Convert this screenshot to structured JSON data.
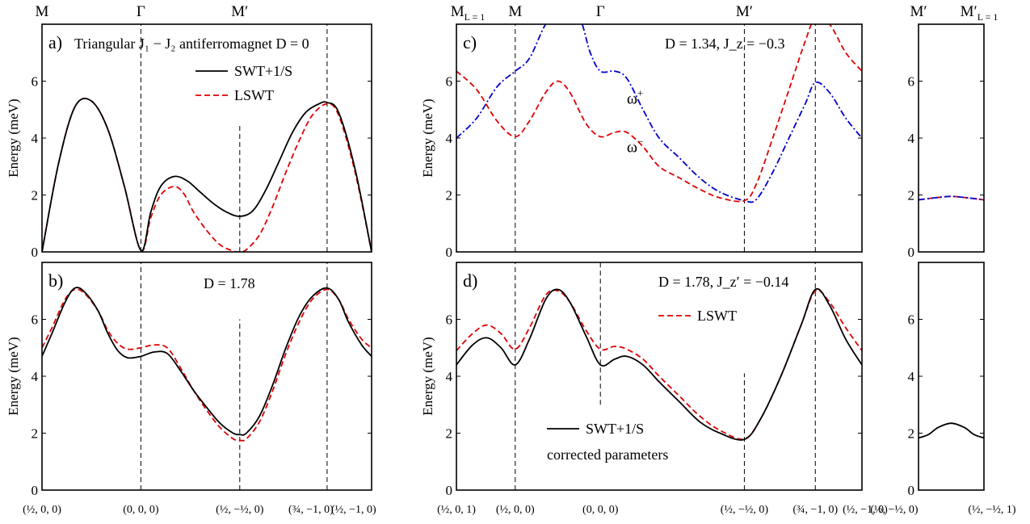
{
  "chart_data": [
    {
      "id": "a",
      "type": "line",
      "panel_label": "a)",
      "title": "Triangular J₁ − J₂ antiferromagnet D = 0",
      "ylabel": "Energy (meV)",
      "ylim": [
        0,
        8
      ],
      "yticks": [
        0,
        2,
        4,
        6
      ],
      "xlim": [
        0,
        1
      ],
      "top_labels": [
        {
          "x": 0.0,
          "text": "M"
        },
        {
          "x": 0.3,
          "text": "Γ"
        },
        {
          "x": 0.6,
          "text": "M′"
        }
      ],
      "vlines": [
        {
          "x": 0.3,
          "ymin": 0,
          "ymax": 8
        },
        {
          "x": 0.6,
          "ymin": 0,
          "ymax": 4.5
        },
        {
          "x": 0.865,
          "ymin": 0,
          "ymax": 8
        }
      ],
      "legend": [
        {
          "text": "SWT+1/S",
          "color": "#000000",
          "dash": "solid"
        },
        {
          "text": "LSWT",
          "color": "#e00000",
          "dash": "dashed"
        }
      ],
      "series": [
        {
          "name": "LSWT",
          "color": "#e00000",
          "dash": "dashed",
          "x": [
            0,
            0.05,
            0.1,
            0.15,
            0.2,
            0.25,
            0.3,
            0.33,
            0.36,
            0.4,
            0.43,
            0.46,
            0.5,
            0.54,
            0.58,
            0.6,
            0.62,
            0.66,
            0.7,
            0.74,
            0.78,
            0.82,
            0.865,
            0.9,
            0.95,
            1.0
          ],
          "y": [
            0,
            3.1,
            5.1,
            5.3,
            4.3,
            2.3,
            0.05,
            1.2,
            2.0,
            2.3,
            2.05,
            1.4,
            0.75,
            0.25,
            0.03,
            0,
            0.08,
            0.6,
            1.6,
            2.8,
            3.9,
            4.8,
            5.2,
            4.8,
            2.8,
            0
          ]
        },
        {
          "name": "SWT+1/S",
          "color": "#000000",
          "dash": "solid",
          "x": [
            0,
            0.05,
            0.1,
            0.15,
            0.2,
            0.25,
            0.3,
            0.33,
            0.36,
            0.4,
            0.44,
            0.48,
            0.52,
            0.56,
            0.6,
            0.64,
            0.68,
            0.72,
            0.76,
            0.8,
            0.84,
            0.865,
            0.9,
            0.95,
            1.0
          ],
          "y": [
            0,
            3.1,
            5.1,
            5.3,
            4.3,
            2.3,
            0.05,
            1.4,
            2.3,
            2.65,
            2.5,
            2.1,
            1.7,
            1.4,
            1.25,
            1.45,
            2.2,
            3.2,
            4.2,
            4.9,
            5.2,
            5.25,
            4.9,
            2.9,
            0
          ]
        }
      ]
    },
    {
      "id": "b",
      "type": "line",
      "panel_label": "b)",
      "title": "D = 1.78",
      "ylabel": "Energy (meV)",
      "ylim": [
        0,
        8
      ],
      "yticks": [
        0,
        2,
        4,
        6
      ],
      "xlim": [
        0,
        1
      ],
      "vlines": [
        {
          "x": 0.3,
          "ymin": 0,
          "ymax": 8
        },
        {
          "x": 0.6,
          "ymin": 0,
          "ymax": 6.0
        },
        {
          "x": 0.865,
          "ymin": 0,
          "ymax": 8
        }
      ],
      "xtick_labels": [
        {
          "x": 0.0,
          "text": "(½, 0, 0)"
        },
        {
          "x": 0.3,
          "text": "(0, 0, 0)"
        },
        {
          "x": 0.6,
          "text": "(½, −½, 0)"
        },
        {
          "x": 0.865,
          "text": "(¾, −1, 0)"
        },
        {
          "x": 1.0,
          "text": "(½, −1, 0)"
        }
      ],
      "series": [
        {
          "name": "LSWT",
          "color": "#e00000",
          "dash": "dashed",
          "x": [
            0,
            0.03,
            0.07,
            0.1,
            0.13,
            0.17,
            0.2,
            0.23,
            0.26,
            0.3,
            0.34,
            0.38,
            0.42,
            0.46,
            0.5,
            0.54,
            0.58,
            0.6,
            0.62,
            0.66,
            0.7,
            0.74,
            0.78,
            0.82,
            0.865,
            0.9,
            0.93,
            0.97,
            1.0
          ],
          "y": [
            5.0,
            5.7,
            6.7,
            7.05,
            6.9,
            6.3,
            5.6,
            5.15,
            4.95,
            5.0,
            5.1,
            5.0,
            4.3,
            3.5,
            2.8,
            2.2,
            1.8,
            1.75,
            1.8,
            2.4,
            3.5,
            4.8,
            5.9,
            6.7,
            7.05,
            6.7,
            6.0,
            5.3,
            5.0
          ]
        },
        {
          "name": "SWT+1/S",
          "color": "#000000",
          "dash": "solid",
          "x": [
            0,
            0.03,
            0.07,
            0.1,
            0.13,
            0.17,
            0.2,
            0.23,
            0.26,
            0.3,
            0.34,
            0.38,
            0.42,
            0.46,
            0.5,
            0.54,
            0.58,
            0.6,
            0.62,
            0.66,
            0.7,
            0.74,
            0.78,
            0.82,
            0.865,
            0.9,
            0.93,
            0.97,
            1.0
          ],
          "y": [
            4.7,
            5.5,
            6.6,
            7.1,
            6.95,
            6.3,
            5.5,
            4.9,
            4.65,
            4.7,
            4.85,
            4.8,
            4.2,
            3.5,
            2.9,
            2.35,
            2.0,
            1.95,
            2.0,
            2.6,
            3.7,
            5.0,
            6.1,
            6.8,
            7.1,
            6.7,
            5.9,
            5.1,
            4.7
          ]
        }
      ]
    },
    {
      "id": "c",
      "type": "line",
      "panel_label": "c)",
      "title": "D = 1.34, J_z = −0.3",
      "ylabel": "Energy (meV)",
      "ylim": [
        0,
        8
      ],
      "yticks": [
        0,
        2,
        4,
        6
      ],
      "xlim": [
        0,
        1
      ],
      "top_labels": [
        {
          "x": 0.0,
          "text": "M",
          "sub": "L = 1"
        },
        {
          "x": 0.145,
          "text": "M"
        },
        {
          "x": 0.355,
          "text": "Γ"
        },
        {
          "x": 0.71,
          "text": "M′"
        }
      ],
      "vlines": [
        {
          "x": 0.145,
          "ymin": 0,
          "ymax": 8
        },
        {
          "x": 0.71,
          "ymin": 0,
          "ymax": 8
        },
        {
          "x": 0.885,
          "ymin": 0,
          "ymax": 8
        }
      ],
      "annotations": [
        {
          "text": "ω",
          "sup": "+",
          "x": 0.42,
          "y": 5.2,
          "color": "#0000cc"
        },
        {
          "text": "ω",
          "sup": "−",
          "x": 0.42,
          "y": 3.5,
          "color": "#e00000"
        }
      ],
      "series": [
        {
          "name": "ω⁺",
          "color": "#0000cc",
          "dash": "dashdot",
          "x": [
            0,
            0.05,
            0.1,
            0.145,
            0.18,
            0.22,
            0.25,
            0.3,
            0.33,
            0.355,
            0.39,
            0.42,
            0.46,
            0.5,
            0.55,
            0.6,
            0.65,
            0.71,
            0.74,
            0.78,
            0.82,
            0.86,
            0.885,
            0.92,
            0.96,
            1.0
          ],
          "y": [
            4.0,
            4.7,
            5.8,
            6.35,
            6.8,
            8.0,
            8.3,
            8.3,
            7.0,
            6.35,
            6.35,
            6.1,
            5.0,
            4.0,
            3.3,
            2.6,
            2.1,
            1.8,
            1.85,
            2.8,
            4.0,
            5.2,
            5.95,
            5.6,
            4.7,
            4.0
          ]
        },
        {
          "name": "ω⁻",
          "color": "#e00000",
          "dash": "dashed",
          "x": [
            0,
            0.05,
            0.1,
            0.145,
            0.18,
            0.22,
            0.25,
            0.28,
            0.32,
            0.355,
            0.39,
            0.42,
            0.46,
            0.5,
            0.55,
            0.6,
            0.65,
            0.71,
            0.74,
            0.78,
            0.82,
            0.86,
            0.885,
            0.92,
            0.96,
            1.0
          ],
          "y": [
            6.35,
            5.7,
            4.6,
            4.05,
            4.6,
            5.6,
            6.0,
            5.6,
            4.5,
            4.05,
            4.2,
            4.2,
            3.7,
            3.0,
            2.6,
            2.2,
            1.9,
            1.8,
            2.4,
            4.0,
            5.7,
            7.4,
            8.2,
            8.0,
            7.0,
            6.35
          ]
        }
      ]
    },
    {
      "id": "c-side",
      "type": "line",
      "ylim": [
        0,
        8
      ],
      "yticks": [
        0,
        2,
        4,
        6
      ],
      "xlim": [
        0,
        1
      ],
      "top_labels": [
        {
          "x": 0.0,
          "text": "M′"
        },
        {
          "x": 1.0,
          "text": "M′",
          "sub": "L = 1"
        }
      ],
      "series": [
        {
          "name": "ω⁻",
          "color": "#e00000",
          "dash": "dashed",
          "x": [
            0,
            0.25,
            0.5,
            0.75,
            1.0
          ],
          "y": [
            1.83,
            1.9,
            1.95,
            1.9,
            1.83
          ]
        },
        {
          "name": "ω⁺",
          "color": "#0000cc",
          "dash": "dashdot",
          "x": [
            0,
            0.25,
            0.5,
            0.75,
            1.0
          ],
          "y": [
            1.83,
            1.9,
            1.95,
            1.9,
            1.83
          ]
        }
      ]
    },
    {
      "id": "d",
      "type": "line",
      "panel_label": "d)",
      "title": "D = 1.78, J_z′ = −0.14",
      "ylabel": "Energy (meV)",
      "ylim": [
        0,
        8
      ],
      "yticks": [
        0,
        2,
        4,
        6
      ],
      "xlim": [
        0,
        1
      ],
      "vlines": [
        {
          "x": 0.145,
          "ymin": 0,
          "ymax": 8
        },
        {
          "x": 0.355,
          "ymin": 3.0,
          "ymax": 8
        },
        {
          "x": 0.71,
          "ymin": 0,
          "ymax": 4.1
        },
        {
          "x": 0.885,
          "ymin": 0,
          "ymax": 8
        }
      ],
      "legend": [
        {
          "text": "LSWT",
          "color": "#e00000",
          "dash": "dashed"
        },
        {
          "text": "SWT+1/S",
          "color": "#000000",
          "dash": "solid"
        }
      ],
      "legend_note": "corrected parameters",
      "xtick_labels": [
        {
          "x": 0.0,
          "text": "(½, 0, 1)"
        },
        {
          "x": 0.145,
          "text": "(½, 0, 0)"
        },
        {
          "x": 0.355,
          "text": "(0, 0, 0)"
        },
        {
          "x": 0.71,
          "text": "(½, −½, 0)"
        },
        {
          "x": 0.885,
          "text": "(¾, −1, 0)"
        },
        {
          "x": 1.0,
          "text": "(½, −1, 0)"
        }
      ],
      "series": [
        {
          "name": "LSWT",
          "color": "#e00000",
          "dash": "dashed",
          "x": [
            0,
            0.04,
            0.075,
            0.11,
            0.145,
            0.18,
            0.22,
            0.25,
            0.28,
            0.32,
            0.355,
            0.39,
            0.42,
            0.46,
            0.5,
            0.55,
            0.6,
            0.65,
            0.71,
            0.75,
            0.8,
            0.85,
            0.885,
            0.92,
            0.96,
            1.0
          ],
          "y": [
            4.9,
            5.5,
            5.8,
            5.5,
            4.95,
            5.7,
            6.85,
            7.0,
            6.6,
            5.6,
            4.95,
            5.05,
            4.95,
            4.6,
            4.0,
            3.3,
            2.6,
            2.1,
            1.8,
            2.5,
            4.0,
            5.8,
            7.0,
            6.6,
            5.7,
            4.9
          ]
        },
        {
          "name": "SWT+1/S",
          "color": "#000000",
          "dash": "solid",
          "x": [
            0,
            0.04,
            0.075,
            0.11,
            0.145,
            0.18,
            0.22,
            0.25,
            0.28,
            0.32,
            0.355,
            0.39,
            0.42,
            0.46,
            0.5,
            0.55,
            0.6,
            0.65,
            0.71,
            0.75,
            0.8,
            0.85,
            0.885,
            0.92,
            0.96,
            1.0
          ],
          "y": [
            4.4,
            5.1,
            5.35,
            5.0,
            4.4,
            5.3,
            6.7,
            7.05,
            6.6,
            5.4,
            4.4,
            4.6,
            4.7,
            4.4,
            3.8,
            3.1,
            2.4,
            2.0,
            1.78,
            2.5,
            4.0,
            5.8,
            7.05,
            6.5,
            5.3,
            4.4
          ]
        }
      ]
    },
    {
      "id": "d-side",
      "type": "line",
      "ylim": [
        0,
        8
      ],
      "yticks": [
        0,
        2,
        4,
        6
      ],
      "xlim": [
        0,
        1
      ],
      "xtick_labels": [
        {
          "x": 0.0,
          "text": "(½, −½, 0)"
        },
        {
          "x": 1.0,
          "text": "(½, −½, 1)"
        }
      ],
      "series": [
        {
          "name": "SWT+1/S",
          "color": "#000000",
          "dash": "solid",
          "x": [
            0,
            0.15,
            0.3,
            0.5,
            0.7,
            0.85,
            1.0
          ],
          "y": [
            1.83,
            1.95,
            2.2,
            2.35,
            2.2,
            1.95,
            1.83
          ]
        }
      ]
    }
  ]
}
